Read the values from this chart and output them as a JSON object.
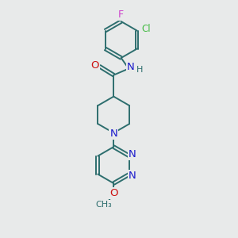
{
  "bg_color": "#e8eaea",
  "bond_color": "#2d6e6e",
  "N_color": "#1a1acc",
  "O_color": "#cc1111",
  "F_color": "#cc44cc",
  "Cl_color": "#44bb44",
  "lw": 1.4,
  "fs": 8.5,
  "figsize": [
    3.0,
    3.0
  ],
  "dpi": 100,
  "xlim": [
    0,
    8
  ],
  "ylim": [
    0,
    11
  ]
}
